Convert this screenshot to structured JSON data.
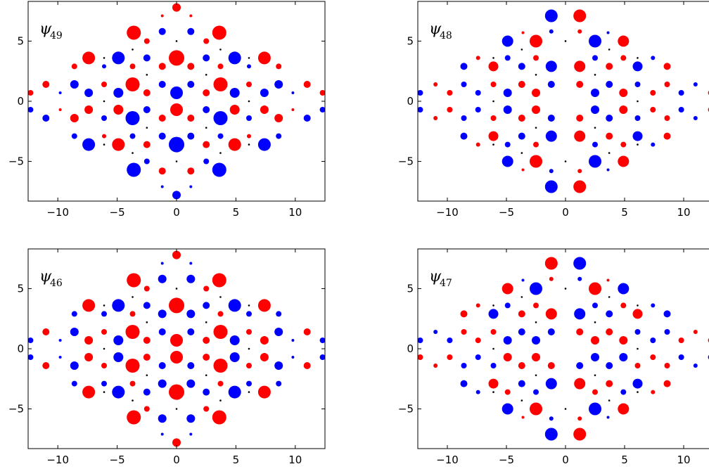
{
  "colors": {
    "positive": "#ff0000",
    "negative": "#0000ff",
    "neutral": "#000000",
    "frame": "#000000"
  },
  "chart_data": [
    {
      "type": "scatter",
      "title_symbol": "ψ",
      "title_sub": "49",
      "xlim": [
        -12.5,
        12.5
      ],
      "ylim": [
        -8.3,
        8.3
      ],
      "xticks": [
        -10,
        -5,
        0,
        5,
        10
      ],
      "yticks": [
        -5,
        0,
        5
      ],
      "xtick_labels": [
        "−10",
        "−5",
        "0",
        "5",
        "10"
      ],
      "ytick_labels": [
        "−5",
        "0",
        "5"
      ],
      "grid": false,
      "mirror": "x-symmetric, y-antisymmetric",
      "points": [
        {
          "x": 0,
          "y": 7.8,
          "r": 6,
          "color": "red"
        },
        {
          "x": 1.2,
          "y": 7.1,
          "r": 2,
          "color": "red"
        },
        {
          "x": 1.2,
          "y": 5.8,
          "r": 5,
          "color": "blue"
        },
        {
          "x": 2.5,
          "y": 5.0,
          "r": 4,
          "color": "red"
        },
        {
          "x": 3.6,
          "y": 5.7,
          "r": 10,
          "color": "red"
        },
        {
          "x": 0,
          "y": 3.6,
          "r": 11,
          "color": "red"
        },
        {
          "x": 2.5,
          "y": 3.6,
          "r": 5,
          "color": "blue"
        },
        {
          "x": 4.9,
          "y": 3.6,
          "r": 9,
          "color": "blue"
        },
        {
          "x": 7.4,
          "y": 3.6,
          "r": 9,
          "color": "red"
        },
        {
          "x": 1.2,
          "y": 2.9,
          "r": 5,
          "color": "red"
        },
        {
          "x": 3.7,
          "y": 2.9,
          "r": 4,
          "color": "red"
        },
        {
          "x": 6.1,
          "y": 2.9,
          "r": 3,
          "color": "blue"
        },
        {
          "x": 8.6,
          "y": 2.9,
          "r": 4,
          "color": "red"
        },
        {
          "x": 1.2,
          "y": 1.4,
          "r": 5,
          "color": "blue"
        },
        {
          "x": 3.7,
          "y": 1.4,
          "r": 10,
          "color": "red"
        },
        {
          "x": 6.1,
          "y": 1.4,
          "r": 4,
          "color": "red"
        },
        {
          "x": 8.6,
          "y": 1.4,
          "r": 6,
          "color": "blue"
        },
        {
          "x": 11.0,
          "y": 1.4,
          "r": 5,
          "color": "red"
        },
        {
          "x": 0,
          "y": 0.7,
          "r": 9,
          "color": "blue"
        },
        {
          "x": 2.5,
          "y": 0.7,
          "r": 5,
          "color": "red"
        },
        {
          "x": 4.9,
          "y": 0.7,
          "r": 7,
          "color": "blue"
        },
        {
          "x": 7.4,
          "y": 0.7,
          "r": 6,
          "color": "blue"
        },
        {
          "x": 9.8,
          "y": 0.7,
          "r": 2,
          "color": "blue"
        },
        {
          "x": 12.3,
          "y": 0.7,
          "r": 4,
          "color": "red"
        }
      ]
    },
    {
      "type": "scatter",
      "title_symbol": "ψ",
      "title_sub": "48",
      "xlim": [
        -12.5,
        12.5
      ],
      "ylim": [
        -8.3,
        8.3
      ],
      "xticks": [
        -10,
        -5,
        0,
        5,
        10
      ],
      "yticks": [
        -5,
        0,
        5
      ],
      "xtick_labels": [
        "−10",
        "−5",
        "0",
        "5",
        "10"
      ],
      "ytick_labels": [
        "−5",
        "0",
        "5"
      ],
      "grid": false,
      "mirror": "x-antisymmetric, y-symmetric",
      "points": [
        {
          "x": 1.2,
          "y": 7.1,
          "r": 9,
          "color": "red"
        },
        {
          "x": 1.2,
          "y": 5.8,
          "r": 3,
          "color": "red"
        },
        {
          "x": 2.5,
          "y": 5.0,
          "r": 9,
          "color": "blue"
        },
        {
          "x": 3.6,
          "y": 5.7,
          "r": 2,
          "color": "blue"
        },
        {
          "x": 4.9,
          "y": 5.0,
          "r": 8,
          "color": "red"
        },
        {
          "x": 2.5,
          "y": 3.6,
          "r": 4,
          "color": "blue"
        },
        {
          "x": 4.9,
          "y": 3.6,
          "r": 4,
          "color": "red"
        },
        {
          "x": 7.4,
          "y": 3.6,
          "r": 3,
          "color": "blue"
        },
        {
          "x": 1.2,
          "y": 2.9,
          "r": 8,
          "color": "red"
        },
        {
          "x": 3.7,
          "y": 2.9,
          "r": 5,
          "color": "red"
        },
        {
          "x": 6.1,
          "y": 2.9,
          "r": 7,
          "color": "blue"
        },
        {
          "x": 8.6,
          "y": 2.9,
          "r": 5,
          "color": "red"
        },
        {
          "x": 1.2,
          "y": 1.4,
          "r": 5,
          "color": "red"
        },
        {
          "x": 3.7,
          "y": 1.4,
          "r": 5,
          "color": "blue"
        },
        {
          "x": 6.1,
          "y": 1.4,
          "r": 4,
          "color": "blue"
        },
        {
          "x": 8.6,
          "y": 1.4,
          "r": 4,
          "color": "red"
        },
        {
          "x": 11.0,
          "y": 1.4,
          "r": 3,
          "color": "blue"
        },
        {
          "x": 2.5,
          "y": 0.7,
          "r": 6,
          "color": "blue"
        },
        {
          "x": 4.9,
          "y": 0.7,
          "r": 6,
          "color": "red"
        },
        {
          "x": 7.4,
          "y": 0.7,
          "r": 4,
          "color": "red"
        },
        {
          "x": 9.8,
          "y": 0.7,
          "r": 4,
          "color": "blue"
        },
        {
          "x": 12.3,
          "y": 0.7,
          "r": 4,
          "color": "red"
        }
      ]
    },
    {
      "type": "scatter",
      "title_symbol": "ψ",
      "title_sub": "46",
      "xlim": [
        -12.5,
        12.5
      ],
      "ylim": [
        -8.3,
        8.3
      ],
      "xticks": [
        -10,
        -5,
        0,
        5,
        10
      ],
      "yticks": [
        -5,
        0,
        5
      ],
      "xtick_labels": [
        "−10",
        "−5",
        "0",
        "5",
        "10"
      ],
      "ytick_labels": [
        "−5",
        "0",
        "5"
      ],
      "grid": false,
      "mirror": "x-symmetric, y-symmetric",
      "points": [
        {
          "x": 0,
          "y": 7.8,
          "r": 6,
          "color": "red"
        },
        {
          "x": 1.2,
          "y": 7.1,
          "r": 2,
          "color": "blue"
        },
        {
          "x": 1.2,
          "y": 5.8,
          "r": 6,
          "color": "blue"
        },
        {
          "x": 2.5,
          "y": 5.0,
          "r": 4,
          "color": "red"
        },
        {
          "x": 3.6,
          "y": 5.7,
          "r": 10,
          "color": "red"
        },
        {
          "x": 0,
          "y": 3.6,
          "r": 11,
          "color": "red"
        },
        {
          "x": 2.5,
          "y": 3.6,
          "r": 5,
          "color": "blue"
        },
        {
          "x": 4.9,
          "y": 3.6,
          "r": 9,
          "color": "blue"
        },
        {
          "x": 7.4,
          "y": 3.6,
          "r": 9,
          "color": "red"
        },
        {
          "x": 1.2,
          "y": 2.9,
          "r": 6,
          "color": "blue"
        },
        {
          "x": 3.7,
          "y": 2.9,
          "r": 4,
          "color": "red"
        },
        {
          "x": 6.1,
          "y": 2.9,
          "r": 4,
          "color": "blue"
        },
        {
          "x": 8.6,
          "y": 2.9,
          "r": 4,
          "color": "blue"
        },
        {
          "x": 1.2,
          "y": 1.4,
          "r": 5,
          "color": "blue"
        },
        {
          "x": 3.7,
          "y": 1.4,
          "r": 10,
          "color": "red"
        },
        {
          "x": 6.1,
          "y": 1.4,
          "r": 4,
          "color": "red"
        },
        {
          "x": 8.6,
          "y": 1.4,
          "r": 6,
          "color": "blue"
        },
        {
          "x": 11.0,
          "y": 1.4,
          "r": 5,
          "color": "red"
        },
        {
          "x": 0,
          "y": 0.7,
          "r": 9,
          "color": "red"
        },
        {
          "x": 2.5,
          "y": 0.7,
          "r": 5,
          "color": "red"
        },
        {
          "x": 4.9,
          "y": 0.7,
          "r": 7,
          "color": "blue"
        },
        {
          "x": 7.4,
          "y": 0.7,
          "r": 6,
          "color": "red"
        },
        {
          "x": 9.8,
          "y": 0.7,
          "r": 2,
          "color": "blue"
        },
        {
          "x": 12.3,
          "y": 0.7,
          "r": 4,
          "color": "blue"
        }
      ]
    },
    {
      "type": "scatter",
      "title_symbol": "ψ",
      "title_sub": "47",
      "xlim": [
        -12.5,
        12.5
      ],
      "ylim": [
        -8.3,
        8.3
      ],
      "xticks": [
        -10,
        -5,
        0,
        5,
        10
      ],
      "yticks": [
        -5,
        0,
        5
      ],
      "xtick_labels": [
        "−10",
        "−5",
        "0",
        "5",
        "10"
      ],
      "ytick_labels": [
        "−5",
        "0",
        "5"
      ],
      "grid": false,
      "mirror": "x-antisymmetric, y-antisymmetric",
      "points": [
        {
          "x": 1.2,
          "y": 7.1,
          "r": 9,
          "color": "blue"
        },
        {
          "x": 1.2,
          "y": 5.8,
          "r": 3,
          "color": "blue"
        },
        {
          "x": 2.5,
          "y": 5.0,
          "r": 9,
          "color": "red"
        },
        {
          "x": 3.6,
          "y": 5.7,
          "r": 2,
          "color": "red"
        },
        {
          "x": 4.9,
          "y": 5.0,
          "r": 8,
          "color": "blue"
        },
        {
          "x": 2.5,
          "y": 3.6,
          "r": 4,
          "color": "blue"
        },
        {
          "x": 4.9,
          "y": 3.6,
          "r": 4,
          "color": "red"
        },
        {
          "x": 7.4,
          "y": 3.6,
          "r": 3,
          "color": "blue"
        },
        {
          "x": 1.2,
          "y": 2.9,
          "r": 8,
          "color": "blue"
        },
        {
          "x": 3.7,
          "y": 2.9,
          "r": 5,
          "color": "blue"
        },
        {
          "x": 6.1,
          "y": 2.9,
          "r": 7,
          "color": "red"
        },
        {
          "x": 8.6,
          "y": 2.9,
          "r": 5,
          "color": "blue"
        },
        {
          "x": 1.2,
          "y": 1.4,
          "r": 5,
          "color": "red"
        },
        {
          "x": 3.7,
          "y": 1.4,
          "r": 5,
          "color": "red"
        },
        {
          "x": 6.1,
          "y": 1.4,
          "r": 4,
          "color": "blue"
        },
        {
          "x": 8.6,
          "y": 1.4,
          "r": 4,
          "color": "blue"
        },
        {
          "x": 11.0,
          "y": 1.4,
          "r": 3,
          "color": "red"
        },
        {
          "x": 2.5,
          "y": 0.7,
          "r": 6,
          "color": "red"
        },
        {
          "x": 4.9,
          "y": 0.7,
          "r": 6,
          "color": "red"
        },
        {
          "x": 7.4,
          "y": 0.7,
          "r": 4,
          "color": "blue"
        },
        {
          "x": 9.8,
          "y": 0.7,
          "r": 4,
          "color": "red"
        },
        {
          "x": 12.3,
          "y": 0.7,
          "r": 4,
          "color": "red"
        }
      ]
    }
  ]
}
